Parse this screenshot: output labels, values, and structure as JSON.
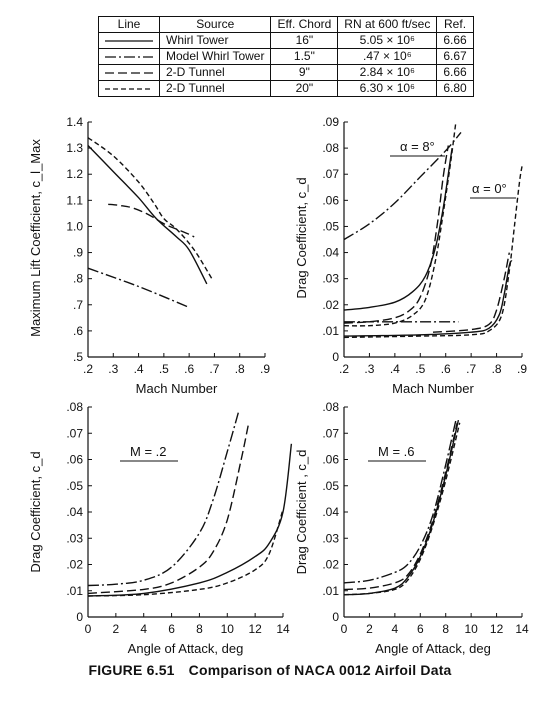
{
  "table": {
    "headers": [
      "Line",
      "Source",
      "Eff. Chord",
      "RN at 600 ft/sec",
      "Ref."
    ],
    "rows": [
      {
        "dash": "solid",
        "source": "Whirl Tower",
        "chord": "16\"",
        "rn": "5.05 × 10⁶",
        "ref": "6.66"
      },
      {
        "dash": "dashdot",
        "source": "Model Whirl Tower",
        "chord": "1.5\"",
        "rn": ".47 × 10⁶",
        "ref": "6.67"
      },
      {
        "dash": "longdash",
        "source": "2-D Tunnel",
        "chord": "9\"",
        "rn": "2.84 × 10⁶",
        "ref": "6.66"
      },
      {
        "dash": "shortdash",
        "source": "2-D Tunnel",
        "chord": "20\"",
        "rn": "6.30 × 10⁶",
        "ref": "6.80"
      }
    ]
  },
  "caption": {
    "number": "FIGURE 6.51",
    "title": "Comparison of NACA 0012 Airfoil Data"
  },
  "chart_data": [
    {
      "type": "line",
      "xlabel": "Mach Number",
      "ylabel": "Maximum Lift Coefficient, c_l_Max",
      "xlim": [
        0.2,
        0.9
      ],
      "ylim": [
        0.5,
        1.4
      ],
      "xticks": [
        ".2",
        ".3",
        ".4",
        ".5",
        ".6",
        ".7",
        ".8",
        ".9"
      ],
      "yticks": [
        ".5",
        ".6",
        ".7",
        ".8",
        ".9",
        "1.0",
        "1.1",
        "1.2",
        "1.3",
        "1.4"
      ],
      "series": [
        {
          "dash": "solid",
          "points": [
            [
              0.2,
              1.31
            ],
            [
              0.3,
              1.21
            ],
            [
              0.4,
              1.11
            ],
            [
              0.47,
              1.03
            ],
            [
              0.55,
              0.96
            ],
            [
              0.6,
              0.91
            ],
            [
              0.67,
              0.78
            ]
          ]
        },
        {
          "dash": "longdash",
          "points": [
            [
              0.28,
              1.085
            ],
            [
              0.33,
              1.08
            ],
            [
              0.38,
              1.07
            ],
            [
              0.44,
              1.045
            ],
            [
              0.5,
              1.01
            ],
            [
              0.55,
              0.99
            ],
            [
              0.6,
              0.97
            ],
            [
              0.62,
              0.96
            ]
          ]
        },
        {
          "dash": "shortdash",
          "points": [
            [
              0.2,
              1.34
            ],
            [
              0.3,
              1.27
            ],
            [
              0.4,
              1.17
            ],
            [
              0.46,
              1.09
            ],
            [
              0.5,
              1.03
            ],
            [
              0.55,
              0.99
            ],
            [
              0.62,
              0.91
            ],
            [
              0.69,
              0.8
            ]
          ]
        },
        {
          "dash": "dashdot",
          "points": [
            [
              0.2,
              0.84
            ],
            [
              0.4,
              0.77
            ],
            [
              0.6,
              0.69
            ]
          ]
        }
      ]
    },
    {
      "type": "line",
      "xlabel": "Mach Number",
      "ylabel": "Drag Coefficient, c_d",
      "xlim": [
        0.2,
        0.9
      ],
      "ylim": [
        0,
        0.09
      ],
      "xticks": [
        ".2",
        ".3",
        ".4",
        ".5",
        ".6",
        ".7",
        ".8",
        ".9"
      ],
      "yticks": [
        "0",
        ".01",
        ".02",
        ".03",
        ".04",
        ".05",
        ".06",
        ".07",
        ".08",
        ".09"
      ],
      "annotations": [
        "α = 8°",
        "α = 0°"
      ],
      "series": [
        {
          "dash": "dashdot",
          "group": "α = 8°",
          "points": [
            [
              0.2,
              0.045
            ],
            [
              0.3,
              0.051
            ],
            [
              0.4,
              0.059
            ],
            [
              0.5,
              0.069
            ],
            [
              0.6,
              0.079
            ],
            [
              0.66,
              0.086
            ]
          ]
        },
        {
          "dash": "solid",
          "group": "α = 8°",
          "points": [
            [
              0.2,
              0.018
            ],
            [
              0.3,
              0.019
            ],
            [
              0.4,
              0.021
            ],
            [
              0.47,
              0.025
            ],
            [
              0.52,
              0.031
            ],
            [
              0.56,
              0.042
            ],
            [
              0.59,
              0.057
            ],
            [
              0.61,
              0.07
            ],
            [
              0.625,
              0.08
            ]
          ]
        },
        {
          "dash": "longdash",
          "group": "α = 8°",
          "points": [
            [
              0.2,
              0.013
            ],
            [
              0.3,
              0.0135
            ],
            [
              0.4,
              0.015
            ],
            [
              0.46,
              0.018
            ],
            [
              0.5,
              0.023
            ],
            [
              0.54,
              0.035
            ],
            [
              0.57,
              0.053
            ],
            [
              0.59,
              0.069
            ],
            [
              0.61,
              0.081
            ]
          ]
        },
        {
          "dash": "shortdash",
          "group": "α = 8°",
          "points": [
            [
              0.2,
              0.012
            ],
            [
              0.3,
              0.012
            ],
            [
              0.4,
              0.013
            ],
            [
              0.47,
              0.016
            ],
            [
              0.52,
              0.022
            ],
            [
              0.56,
              0.037
            ],
            [
              0.59,
              0.055
            ],
            [
              0.62,
              0.075
            ],
            [
              0.64,
              0.09
            ]
          ]
        },
        {
          "dash": "dashdot",
          "group": "α = 0°",
          "points": [
            [
              0.2,
              0.0135
            ],
            [
              0.4,
              0.0135
            ],
            [
              0.6,
              0.0135
            ],
            [
              0.65,
              0.0135
            ]
          ]
        },
        {
          "dash": "solid",
          "group": "α = 0°",
          "points": [
            [
              0.2,
              0.008
            ],
            [
              0.5,
              0.0085
            ],
            [
              0.7,
              0.0095
            ],
            [
              0.77,
              0.011
            ],
            [
              0.81,
              0.016
            ],
            [
              0.83,
              0.024
            ],
            [
              0.85,
              0.035
            ],
            [
              0.86,
              0.037
            ]
          ]
        },
        {
          "dash": "longdash",
          "group": "α = 0°",
          "points": [
            [
              0.55,
              0.0095
            ],
            [
              0.7,
              0.0105
            ],
            [
              0.77,
              0.0125
            ],
            [
              0.8,
              0.018
            ],
            [
              0.83,
              0.03
            ],
            [
              0.85,
              0.04
            ]
          ]
        },
        {
          "dash": "shortdash",
          "group": "α = 0°",
          "points": [
            [
              0.2,
              0.0075
            ],
            [
              0.5,
              0.008
            ],
            [
              0.7,
              0.0085
            ],
            [
              0.77,
              0.01
            ],
            [
              0.82,
              0.016
            ],
            [
              0.85,
              0.033
            ],
            [
              0.87,
              0.05
            ],
            [
              0.89,
              0.067
            ],
            [
              0.9,
              0.073
            ]
          ]
        }
      ]
    },
    {
      "type": "line",
      "xlabel": "Angle of Attack, deg",
      "ylabel": "Drag Coefficient, c_d",
      "xlim": [
        0,
        14
      ],
      "ylim": [
        0,
        0.08
      ],
      "xticks": [
        "0",
        "2",
        "4",
        "6",
        "8",
        "10",
        "12",
        "14"
      ],
      "yticks": [
        "0",
        ".01",
        ".02",
        ".03",
        ".04",
        ".05",
        ".06",
        ".07",
        ".08"
      ],
      "annotations": [
        "M = .2"
      ],
      "series": [
        {
          "dash": "dashdot",
          "points": [
            [
              0,
              0.012
            ],
            [
              2,
              0.0125
            ],
            [
              4,
              0.014
            ],
            [
              6,
              0.019
            ],
            [
              8,
              0.032
            ],
            [
              9,
              0.045
            ],
            [
              10,
              0.063
            ],
            [
              10.8,
              0.078
            ]
          ]
        },
        {
          "dash": "longdash",
          "points": [
            [
              0,
              0.009
            ],
            [
              4,
              0.0105
            ],
            [
              6,
              0.013
            ],
            [
              8,
              0.019
            ],
            [
              9,
              0.025
            ],
            [
              10,
              0.037
            ],
            [
              11,
              0.06
            ],
            [
              11.5,
              0.073
            ]
          ]
        },
        {
          "dash": "solid",
          "points": [
            [
              0,
              0.008
            ],
            [
              4,
              0.009
            ],
            [
              8,
              0.013
            ],
            [
              10,
              0.017
            ],
            [
              12,
              0.023
            ],
            [
              13,
              0.028
            ],
            [
              14,
              0.04
            ],
            [
              14.6,
              0.066
            ]
          ]
        },
        {
          "dash": "shortdash",
          "points": [
            [
              0,
              0.008
            ],
            [
              4,
              0.0085
            ],
            [
              8,
              0.0105
            ],
            [
              10,
              0.013
            ],
            [
              12,
              0.018
            ],
            [
              13,
              0.024
            ],
            [
              14,
              0.041
            ]
          ]
        }
      ]
    },
    {
      "type": "line",
      "xlabel": "Angle of Attack, deg",
      "ylabel": "Drag Coefficient , c_d",
      "xlim": [
        0,
        14
      ],
      "ylim": [
        0,
        0.08
      ],
      "xticks": [
        "0",
        "2",
        "4",
        "6",
        "8",
        "10",
        "12",
        "14"
      ],
      "yticks": [
        "0",
        ".01",
        ".02",
        ".03",
        ".04",
        ".05",
        ".06",
        ".07",
        ".08"
      ],
      "annotations": [
        "M = .6"
      ],
      "series": [
        {
          "dash": "dashdot",
          "points": [
            [
              0,
              0.013
            ],
            [
              2,
              0.014
            ],
            [
              4,
              0.017
            ],
            [
              5,
              0.02
            ],
            [
              6,
              0.027
            ],
            [
              7,
              0.039
            ],
            [
              8,
              0.058
            ],
            [
              8.8,
              0.075
            ]
          ]
        },
        {
          "dash": "longdash",
          "points": [
            [
              0,
              0.0105
            ],
            [
              2,
              0.011
            ],
            [
              4,
              0.013
            ],
            [
              5,
              0.016
            ],
            [
              6,
              0.024
            ],
            [
              7,
              0.037
            ],
            [
              8,
              0.055
            ],
            [
              8.9,
              0.074
            ]
          ]
        },
        {
          "dash": "solid",
          "points": [
            [
              0,
              0.0085
            ],
            [
              2,
              0.009
            ],
            [
              4,
              0.011
            ],
            [
              5,
              0.015
            ],
            [
              6,
              0.023
            ],
            [
              7,
              0.036
            ],
            [
              8,
              0.054
            ],
            [
              9,
              0.075
            ]
          ]
        },
        {
          "dash": "shortdash",
          "points": [
            [
              0,
              0.0085
            ],
            [
              2,
              0.009
            ],
            [
              4,
              0.0105
            ],
            [
              5,
              0.014
            ],
            [
              6,
              0.022
            ],
            [
              7,
              0.035
            ],
            [
              8,
              0.052
            ],
            [
              9.1,
              0.074
            ]
          ]
        }
      ]
    }
  ]
}
